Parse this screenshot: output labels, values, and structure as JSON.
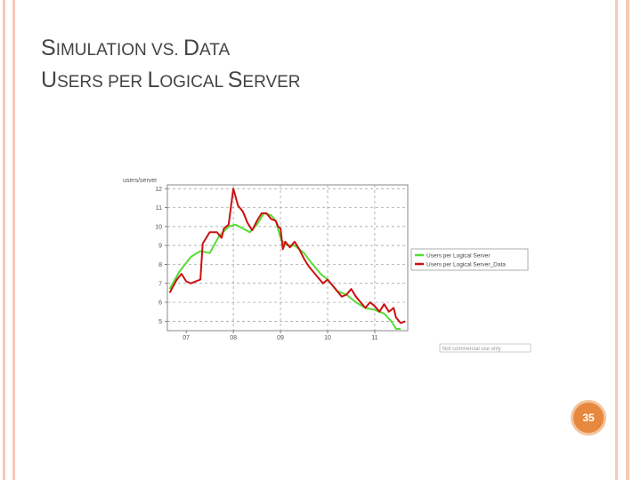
{
  "slide": {
    "title_line1": [
      "S",
      "IMULATION ",
      "VS",
      ". ",
      "D",
      "ATA"
    ],
    "title_line2": [
      "U",
      "SERS PER ",
      "L",
      "OGICAL ",
      "S",
      "ERVER"
    ],
    "page_number": "35",
    "rail_color": "#f7c9b4",
    "accent_color": "#e7883f"
  },
  "chart_data": {
    "type": "line",
    "ylabel": "users/server",
    "ylim": [
      4.5,
      12.2
    ],
    "yticks": [
      5,
      6,
      7,
      8,
      9,
      10,
      11,
      12
    ],
    "xlim": [
      2006.6,
      2011.7
    ],
    "xticks": [
      {
        "value": 2007,
        "label": "07"
      },
      {
        "value": 2008,
        "label": "08"
      },
      {
        "value": 2009,
        "label": "09"
      },
      {
        "value": 2010,
        "label": "10"
      },
      {
        "value": 2011,
        "label": "11"
      }
    ],
    "grid_x": [
      2008,
      2009,
      2010,
      2011
    ],
    "grid_y": [
      5,
      6,
      7,
      8,
      9,
      10,
      11,
      12
    ],
    "legend_position": "right",
    "footnote": "Not commercial use only",
    "series": [
      {
        "name": "Users per Logical Server",
        "color": "#55dd33",
        "points": [
          [
            2006.65,
            6.7
          ],
          [
            2006.85,
            7.6
          ],
          [
            2007.1,
            8.4
          ],
          [
            2007.3,
            8.7
          ],
          [
            2007.5,
            8.6
          ],
          [
            2007.7,
            9.5
          ],
          [
            2007.9,
            10.0
          ],
          [
            2008.05,
            10.1
          ],
          [
            2008.2,
            9.9
          ],
          [
            2008.35,
            9.7
          ],
          [
            2008.5,
            10.1
          ],
          [
            2008.65,
            10.7
          ],
          [
            2008.8,
            10.6
          ],
          [
            2008.9,
            10.3
          ],
          [
            2009.0,
            9.4
          ],
          [
            2009.05,
            9.2
          ],
          [
            2009.15,
            9.0
          ],
          [
            2009.3,
            9.0
          ],
          [
            2009.5,
            8.6
          ],
          [
            2009.65,
            8.1
          ],
          [
            2009.85,
            7.5
          ],
          [
            2010.0,
            7.2
          ],
          [
            2010.2,
            6.6
          ],
          [
            2010.4,
            6.4
          ],
          [
            2010.6,
            6.0
          ],
          [
            2010.8,
            5.7
          ],
          [
            2011.0,
            5.6
          ],
          [
            2011.2,
            5.4
          ],
          [
            2011.35,
            5.0
          ],
          [
            2011.45,
            4.6
          ],
          [
            2011.55,
            4.6
          ]
        ]
      },
      {
        "name": "Users per Logical Server_Data",
        "color": "#cc1111",
        "points": [
          [
            2006.65,
            6.5
          ],
          [
            2006.8,
            7.2
          ],
          [
            2006.9,
            7.5
          ],
          [
            2007.0,
            7.1
          ],
          [
            2007.1,
            7.0
          ],
          [
            2007.2,
            7.1
          ],
          [
            2007.3,
            7.2
          ],
          [
            2007.35,
            9.1
          ],
          [
            2007.5,
            9.7
          ],
          [
            2007.65,
            9.7
          ],
          [
            2007.75,
            9.4
          ],
          [
            2007.8,
            9.9
          ],
          [
            2007.9,
            10.1
          ],
          [
            2008.0,
            12.0
          ],
          [
            2008.1,
            11.1
          ],
          [
            2008.2,
            10.8
          ],
          [
            2008.25,
            10.5
          ],
          [
            2008.3,
            10.2
          ],
          [
            2008.4,
            9.8
          ],
          [
            2008.5,
            10.3
          ],
          [
            2008.6,
            10.7
          ],
          [
            2008.7,
            10.7
          ],
          [
            2008.8,
            10.4
          ],
          [
            2008.9,
            10.3
          ],
          [
            2008.95,
            10.0
          ],
          [
            2009.0,
            9.9
          ],
          [
            2009.05,
            8.8
          ],
          [
            2009.1,
            9.2
          ],
          [
            2009.2,
            8.9
          ],
          [
            2009.3,
            9.2
          ],
          [
            2009.4,
            8.8
          ],
          [
            2009.5,
            8.3
          ],
          [
            2009.6,
            7.9
          ],
          [
            2009.7,
            7.6
          ],
          [
            2009.8,
            7.3
          ],
          [
            2009.9,
            7.0
          ],
          [
            2010.0,
            7.2
          ],
          [
            2010.1,
            6.9
          ],
          [
            2010.2,
            6.6
          ],
          [
            2010.3,
            6.3
          ],
          [
            2010.4,
            6.4
          ],
          [
            2010.5,
            6.7
          ],
          [
            2010.6,
            6.3
          ],
          [
            2010.7,
            6.0
          ],
          [
            2010.8,
            5.7
          ],
          [
            2010.9,
            6.0
          ],
          [
            2011.0,
            5.8
          ],
          [
            2011.1,
            5.5
          ],
          [
            2011.2,
            5.9
          ],
          [
            2011.3,
            5.5
          ],
          [
            2011.4,
            5.7
          ],
          [
            2011.45,
            5.2
          ],
          [
            2011.55,
            4.9
          ],
          [
            2011.65,
            5.0
          ]
        ]
      }
    ]
  }
}
